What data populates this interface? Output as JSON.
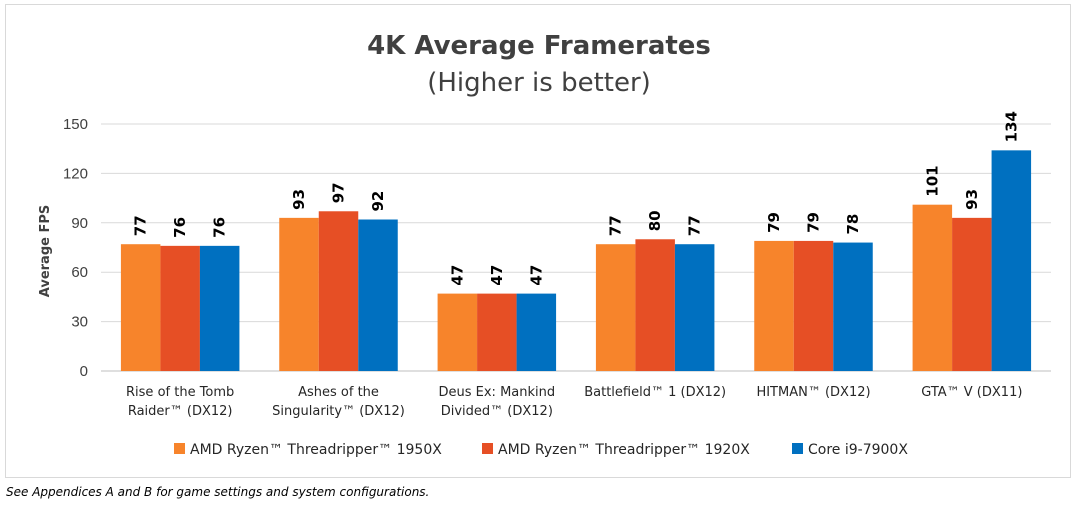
{
  "chart_data": {
    "type": "bar",
    "title": "4K Average Framerates",
    "subtitle": "(Higher is better)",
    "ylabel": "Average FPS",
    "xlabel": "",
    "ylim": [
      0,
      150
    ],
    "yticks": [
      0,
      30,
      60,
      90,
      120,
      150
    ],
    "grid": true,
    "legend_position": "bottom",
    "categories": [
      [
        "Rise of the Tomb",
        "Raider™ (DX12)"
      ],
      [
        "Ashes of the",
        "Singularity™ (DX12)"
      ],
      [
        "Deus Ex: Mankind",
        "Divided™ (DX12)"
      ],
      [
        "Battlefield™ 1 (DX12)"
      ],
      [
        "HITMAN™ (DX12)"
      ],
      [
        "GTA™ V (DX11)"
      ]
    ],
    "series": [
      {
        "name": "AMD Ryzen™ Threadripper™ 1950X",
        "color": "#f7842b",
        "values": [
          77,
          93,
          47,
          77,
          79,
          101
        ]
      },
      {
        "name": "AMD Ryzen™ Threadripper™ 1920X",
        "color": "#e64f25",
        "values": [
          76,
          97,
          47,
          80,
          79,
          93
        ]
      },
      {
        "name": "Core i9-7900X",
        "color": "#0070c0",
        "values": [
          76,
          92,
          47,
          77,
          78,
          134
        ]
      }
    ]
  },
  "footnote": "See Appendices A and B for game settings and system configurations."
}
